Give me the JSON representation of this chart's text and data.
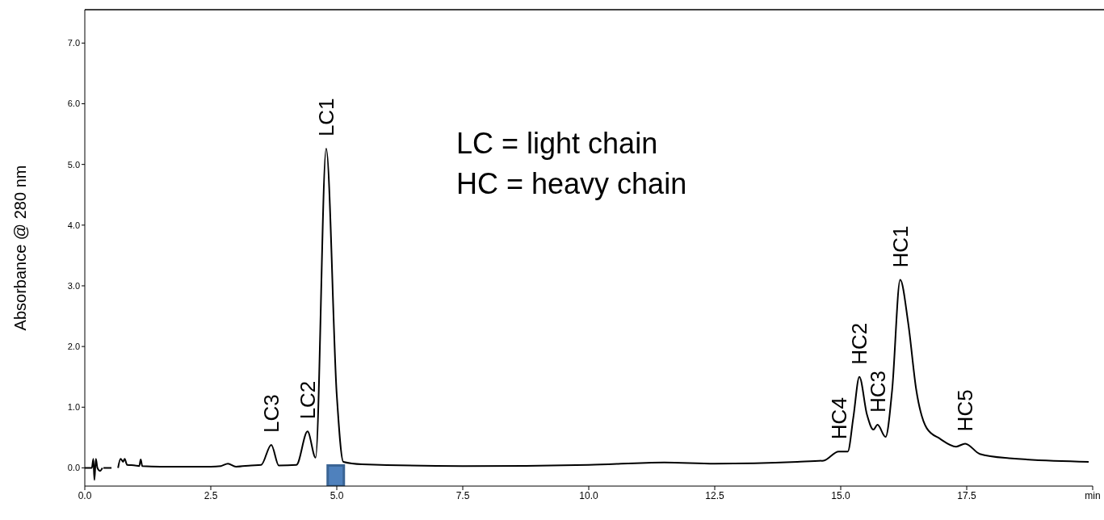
{
  "chart_data": {
    "type": "line",
    "ylabel": "Absorbance @ 280 nm",
    "series": [
      {
        "color": "#000000",
        "x": [
          0,
          0.14,
          0.17,
          0.19,
          0.22,
          0.25,
          0.3,
          0.35,
          0.36,
          0.37,
          0.4,
          0.5,
          0.53,
          0.54,
          0.55,
          0.57,
          0.63,
          0.66,
          0.71,
          0.76,
          0.79,
          0.84,
          1.0,
          1.08,
          1.11,
          1.14,
          1.5,
          2.0,
          2.5,
          2.7,
          2.84,
          3.0,
          3.3,
          3.5,
          3.7,
          3.85,
          4.2,
          4.42,
          4.58,
          4.79,
          5.0,
          5.13,
          5.5,
          7.5,
          10,
          11.5,
          12.5,
          14.14,
          14.66,
          14.96,
          15.14,
          15.25,
          15.37,
          15.52,
          15.65,
          15.73,
          15.89,
          16.02,
          16.18,
          16.34,
          16.5,
          16.71,
          16.97,
          17.29,
          17.47,
          17.76,
          18.34,
          19.92
        ],
        "values": [
          0,
          0,
          0.15,
          -0.2,
          0.15,
          0,
          -0.05,
          0,
          null,
          0,
          0,
          0,
          0,
          null,
          null,
          null,
          null,
          0,
          0.15,
          0.1,
          0.15,
          0.05,
          0.04,
          0.03,
          0.14,
          0.03,
          0.02,
          0.02,
          0.02,
          0.03,
          0.07,
          0.02,
          0.04,
          0.05,
          0.38,
          0.04,
          0.05,
          0.6,
          0.17,
          5.26,
          1.2,
          0.1,
          0.06,
          0.03,
          0.05,
          0.09,
          0.07,
          0.1,
          0.12,
          0.27,
          0.27,
          0.83,
          1.5,
          0.88,
          0.63,
          0.71,
          0.51,
          1.28,
          3.1,
          2.38,
          1.28,
          0.65,
          0.48,
          0.35,
          0.4,
          0.23,
          0.16,
          0.1
        ]
      },
      {
        "type": "bar",
        "color": "#4f81bd",
        "x": [
          4.98
        ],
        "base": [
          -0.3
        ],
        "values": [
          0.34
        ]
      }
    ],
    "xlim": [
      0,
      20
    ],
    "xticks": [
      {
        "value": 0,
        "label": "0.0"
      },
      {
        "value": 2.5,
        "label": "2.5"
      },
      {
        "value": 5,
        "label": "5.0"
      },
      {
        "value": 7.5,
        "label": "7.5"
      },
      {
        "value": 10,
        "label": "10.0"
      },
      {
        "value": 12.5,
        "label": "12.5"
      },
      {
        "value": 15,
        "label": "15.0"
      },
      {
        "value": 17.5,
        "label": "17.5"
      },
      {
        "value": 20,
        "label": "min"
      }
    ],
    "ylim": [
      -0.3,
      7.55
    ],
    "yticks": [
      {
        "value": 0,
        "label": "0.0"
      },
      {
        "value": 1,
        "label": "1.0"
      },
      {
        "value": 2,
        "label": "2.0"
      },
      {
        "value": 3,
        "label": "3.0"
      },
      {
        "value": 4,
        "label": "4.0"
      },
      {
        "value": 5,
        "label": "5.0"
      },
      {
        "value": 6,
        "label": "6.0"
      },
      {
        "value": 7,
        "label": "7.0"
      }
    ],
    "annotations": [
      "LC = light chain",
      "HC = heavy chain",
      {
        "text": "LC1",
        "x": 4.79,
        "y": 5.26
      },
      {
        "text": "LC2",
        "x": 4.42,
        "y": 0.6
      },
      {
        "text": "LC3",
        "x": 3.7,
        "y": 0.38
      },
      {
        "text": "HC1",
        "x": 16.18,
        "y": 3.1
      },
      {
        "text": "HC2",
        "x": 15.37,
        "y": 1.5
      },
      {
        "text": "HC3",
        "x": 15.73,
        "y": 0.71
      },
      {
        "text": "HC4",
        "x": 14.96,
        "y": 0.27
      },
      {
        "text": "HC5",
        "x": 17.47,
        "y": 0.4
      }
    ],
    "grid": false,
    "legend": false,
    "marker": "none",
    "line_style": "solid"
  }
}
